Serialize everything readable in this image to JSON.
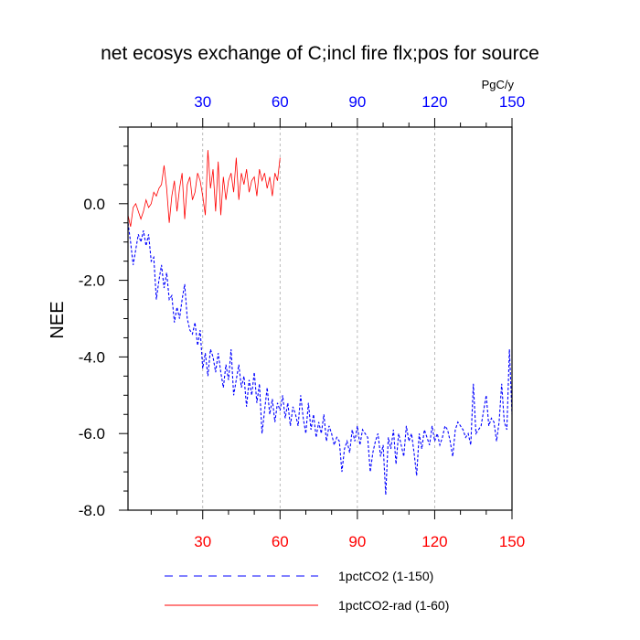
{
  "chart_data": {
    "type": "line",
    "title": "net ecosys exchange of C;incl fire flx;pos for source",
    "ylabel": "NEE",
    "units": "PgC/y",
    "xlim": [
      1,
      150
    ],
    "ylim": [
      -8.0,
      2.0
    ],
    "x_ticks_bottom": [
      30,
      60,
      90,
      120,
      150
    ],
    "x_ticks_top": [
      30,
      60,
      90,
      120,
      150
    ],
    "y_ticks": [
      0.0,
      -2.0,
      -4.0,
      -6.0,
      -8.0
    ],
    "y_tick_labels": [
      "0.0",
      "-2.0",
      "-4.0",
      "-6.0",
      "-8.0"
    ],
    "grid_x_dashed": true,
    "colors": {
      "bottom_ticks": "#ff0000",
      "top_ticks": "#0000ff",
      "series_1": "#0000ff",
      "series_2": "#ff0000"
    },
    "series": [
      {
        "name": "1pctCO2 (1-150)",
        "color": "#0000ff",
        "style": "dashed",
        "values": [
          -0.5,
          -1.0,
          -1.6,
          -1.2,
          -0.8,
          -1.0,
          -0.7,
          -1.1,
          -0.8,
          -1.5,
          -1.4,
          -2.5,
          -2.0,
          -1.6,
          -2.2,
          -1.8,
          -2.5,
          -2.4,
          -3.1,
          -2.7,
          -3.0,
          -2.5,
          -2.1,
          -3.0,
          -3.3,
          -3.4,
          -3.1,
          -3.7,
          -3.3,
          -4.3,
          -3.9,
          -4.5,
          -3.8,
          -4.0,
          -4.4,
          -3.9,
          -4.4,
          -4.8,
          -4.2,
          -4.6,
          -3.8,
          -5.0,
          -4.6,
          -4.2,
          -4.8,
          -4.5,
          -5.3,
          -4.6,
          -5.0,
          -4.4,
          -5.2,
          -4.7,
          -6.0,
          -5.4,
          -4.8,
          -5.5,
          -5.1,
          -5.7,
          -5.2,
          -5.4,
          -5.0,
          -5.6,
          -5.2,
          -5.8,
          -5.3,
          -5.5,
          -5.8,
          -5.0,
          -5.6,
          -6.0,
          -5.2,
          -5.9,
          -5.5,
          -6.1,
          -5.7,
          -6.0,
          -5.5,
          -6.2,
          -5.8,
          -6.0,
          -6.3,
          -6.1,
          -6.2,
          -7.0,
          -6.4,
          -6.2,
          -6.5,
          -5.9,
          -6.2,
          -5.8,
          -6.3,
          -5.9,
          -6.0,
          -6.1,
          -7.0,
          -6.5,
          -6.2,
          -6.0,
          -6.6,
          -6.3,
          -7.6,
          -6.1,
          -6.4,
          -5.9,
          -6.8,
          -6.0,
          -6.3,
          -6.6,
          -5.8,
          -6.2,
          -6.0,
          -6.5,
          -7.1,
          -6.0,
          -6.4,
          -5.9,
          -6.1,
          -6.3,
          -5.8,
          -6.2,
          -6.0,
          -6.3,
          -6.1,
          -5.8,
          -5.9,
          -6.2,
          -6.6,
          -5.9,
          -5.7,
          -5.8,
          -5.9,
          -6.1,
          -6.0,
          -6.3,
          -4.7,
          -6.0,
          -5.9,
          -5.8,
          -5.4,
          -5.0,
          -5.8,
          -5.6,
          -5.7,
          -6.2,
          -5.7,
          -4.7,
          -5.7,
          -5.9,
          -3.8,
          -5.5
        ]
      },
      {
        "name": "1pctCO2-rad (1-60)",
        "color": "#ff0000",
        "style": "solid",
        "values": [
          -0.3,
          -0.6,
          -0.1,
          0.0,
          -0.2,
          -0.4,
          -0.2,
          0.1,
          -0.1,
          0.0,
          0.3,
          0.2,
          0.4,
          0.5,
          1.0,
          0.4,
          -0.5,
          0.2,
          0.6,
          -0.2,
          0.4,
          0.8,
          -0.4,
          0.5,
          0.7,
          0.1,
          0.3,
          0.8,
          0.6,
          0.2,
          -0.3,
          1.4,
          0.4,
          0.9,
          -0.2,
          1.1,
          -0.3,
          0.7,
          0.1,
          0.6,
          0.8,
          0.3,
          1.2,
          0.1,
          0.8,
          0.5,
          0.9,
          0.3,
          0.6,
          0.7,
          0.2,
          0.9,
          0.6,
          0.8,
          0.4,
          0.7,
          0.2,
          0.8,
          0.6,
          1.2
        ]
      }
    ]
  }
}
